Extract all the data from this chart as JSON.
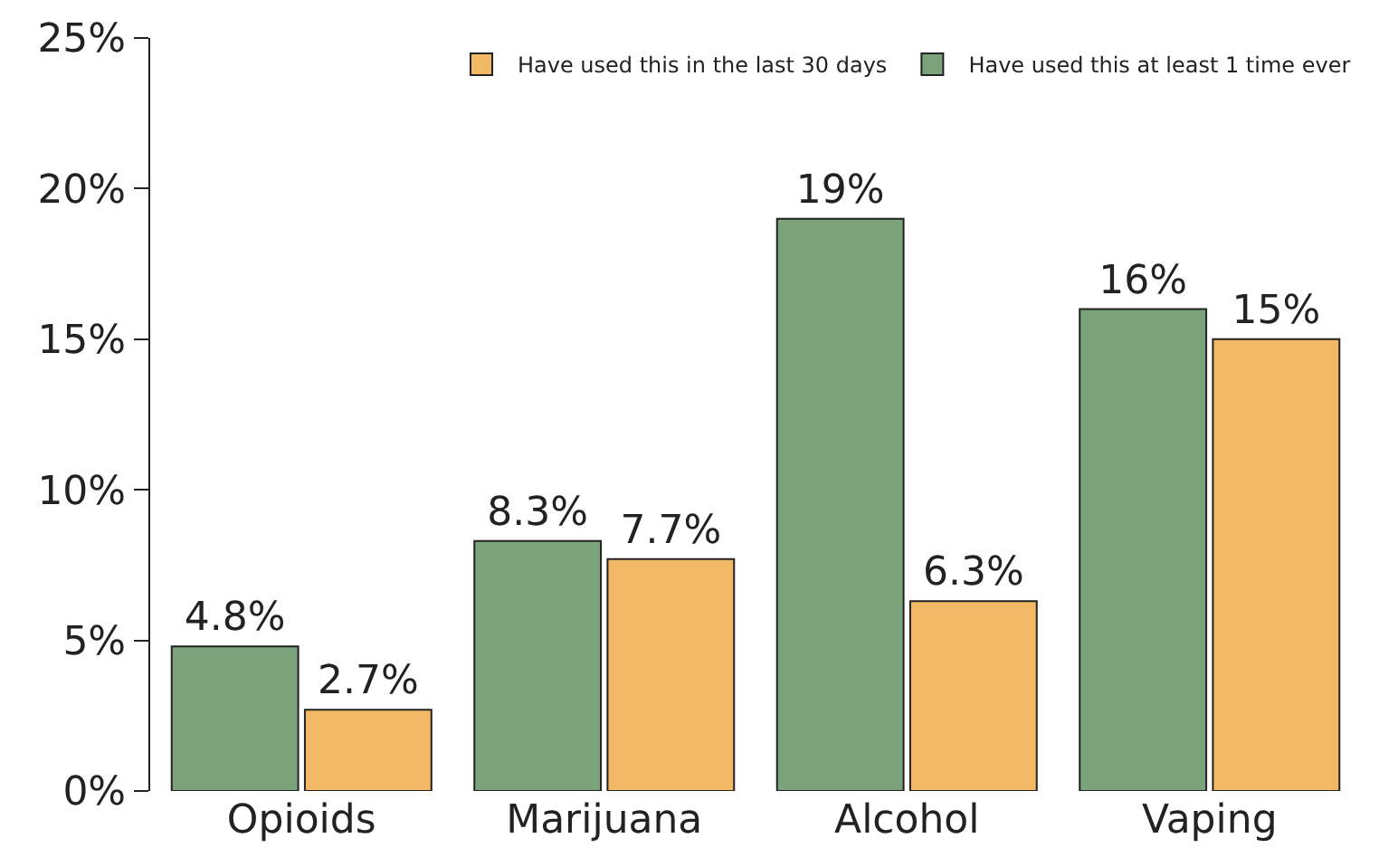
{
  "chart_data": {
    "type": "bar",
    "categories": [
      "Opioids",
      "Marijuana",
      "Alcohol",
      "Vaping"
    ],
    "series": [
      {
        "name": "Have used this at least 1 time ever",
        "color": "#7ba37b",
        "values": [
          4.8,
          8.3,
          19,
          16
        ],
        "value_labels": [
          "4.8%",
          "8.3%",
          "19%",
          "16%"
        ]
      },
      {
        "name": "Have used this in the last 30 days",
        "color": "#f2b865",
        "values": [
          2.7,
          7.7,
          6.3,
          15
        ],
        "value_labels": [
          "2.7%",
          "7.7%",
          "6.3%",
          "15%"
        ]
      }
    ],
    "ylim": [
      0,
      25
    ],
    "yticks": [
      {
        "value": 0,
        "label": "0%"
      },
      {
        "value": 5,
        "label": "5%"
      },
      {
        "value": 10,
        "label": "10%"
      },
      {
        "value": 15,
        "label": "15%"
      },
      {
        "value": 20,
        "label": "20%"
      },
      {
        "value": 25,
        "label": "25%"
      }
    ],
    "legend": "top right"
  }
}
